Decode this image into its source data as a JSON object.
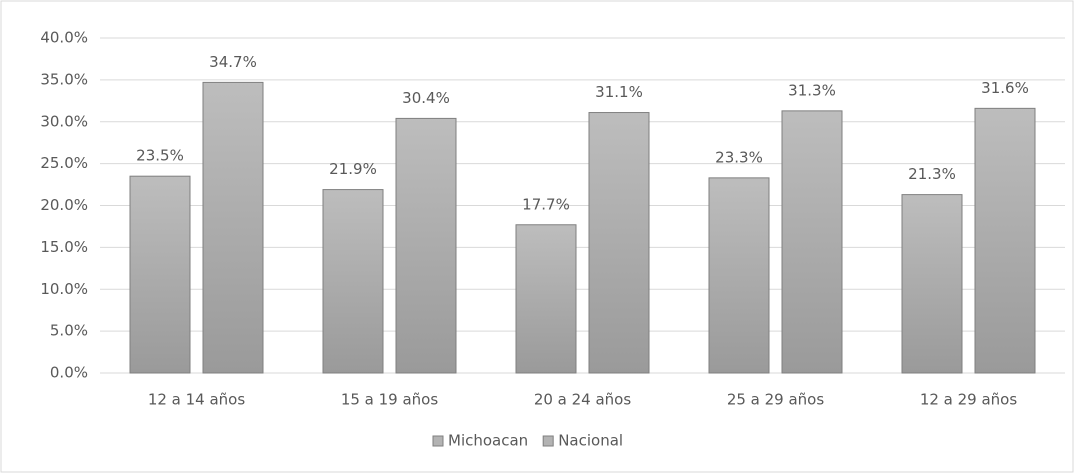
{
  "chart_data": {
    "type": "bar",
    "categories": [
      "12 a 14 años",
      "15 a 19 años",
      "20 a 24 años",
      "25 a 29 años",
      "12 a 29 años"
    ],
    "series": [
      {
        "name": "Michoacan",
        "color": "#b3b3b3",
        "values": [
          23.5,
          21.9,
          17.7,
          23.3,
          21.3
        ],
        "value_labels": [
          "23.5%",
          "21.9%",
          "17.7%",
          "23.3%",
          "21.3%"
        ]
      },
      {
        "name": "Nacional",
        "color": "#b3b3b3",
        "values": [
          34.7,
          30.4,
          31.1,
          31.3,
          31.6
        ],
        "value_labels": [
          "34.7%",
          "30.4%",
          "31.1%",
          "31.3%",
          "31.6%"
        ]
      }
    ],
    "ylim": [
      0,
      40
    ],
    "yticks": [
      {
        "value": 0,
        "label": "0.0%"
      },
      {
        "value": 5,
        "label": "5.0%"
      },
      {
        "value": 10,
        "label": "10.0%"
      },
      {
        "value": 15,
        "label": "15.0%"
      },
      {
        "value": 20,
        "label": "20.0%"
      },
      {
        "value": 25,
        "label": "25.0%"
      },
      {
        "value": 30,
        "label": "30.0%"
      },
      {
        "value": 35,
        "label": "35.0%"
      },
      {
        "value": 40,
        "label": "40.0%"
      }
    ],
    "grid": true,
    "legend": "bottom"
  }
}
